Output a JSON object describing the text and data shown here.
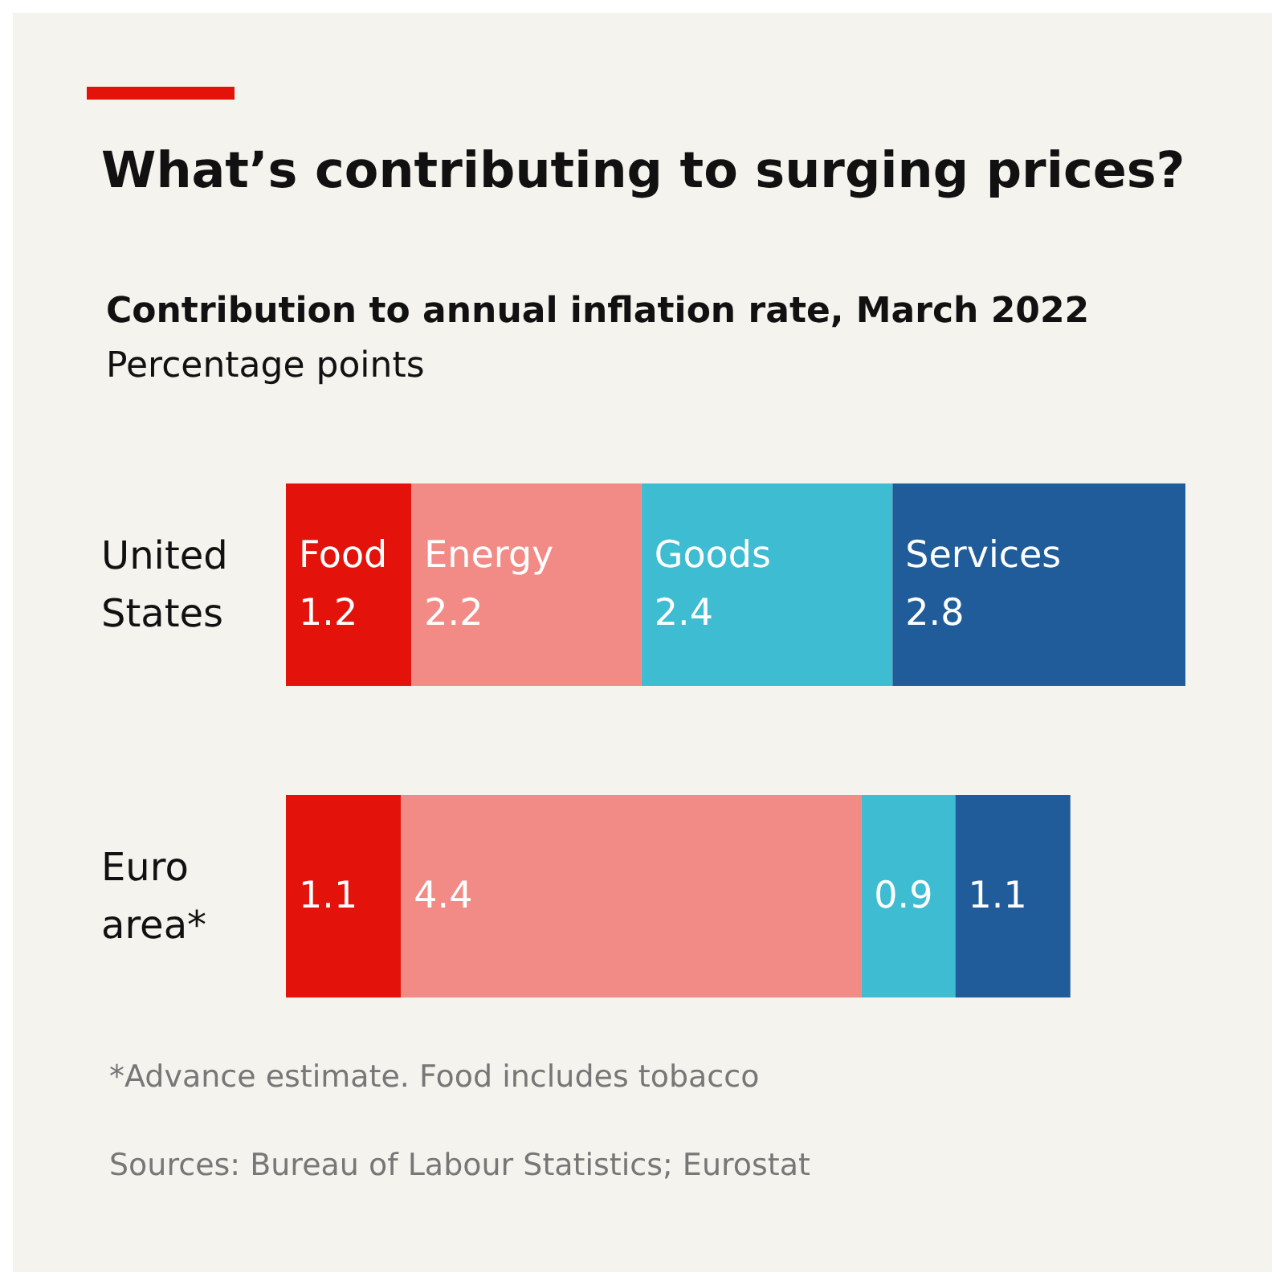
{
  "chart_data": {
    "type": "bar",
    "title": "What’s contributing to surging prices?",
    "subtitle": "Contribution to annual inflation rate, March 2022",
    "xlabel": "Percentage points",
    "orientation": "horizontal",
    "stacked": true,
    "data_labels": true,
    "legend": false,
    "categories": [
      "United States",
      "Euro area*"
    ],
    "series": [
      {
        "name": "Food",
        "color": "#e3120b",
        "values": [
          1.2,
          1.1
        ]
      },
      {
        "name": "Energy",
        "color": "#f28b85",
        "values": [
          2.2,
          4.4
        ]
      },
      {
        "name": "Goods",
        "color": "#3ebcd2",
        "values": [
          2.4,
          0.9
        ]
      },
      {
        "name": "Services",
        "color": "#1f5c99",
        "values": [
          2.8,
          1.1
        ]
      }
    ],
    "annotations": [
      "*Advance estimate. Food includes tobacco",
      "Sources: Bureau of Labour Statistics; Eurostat"
    ]
  }
}
